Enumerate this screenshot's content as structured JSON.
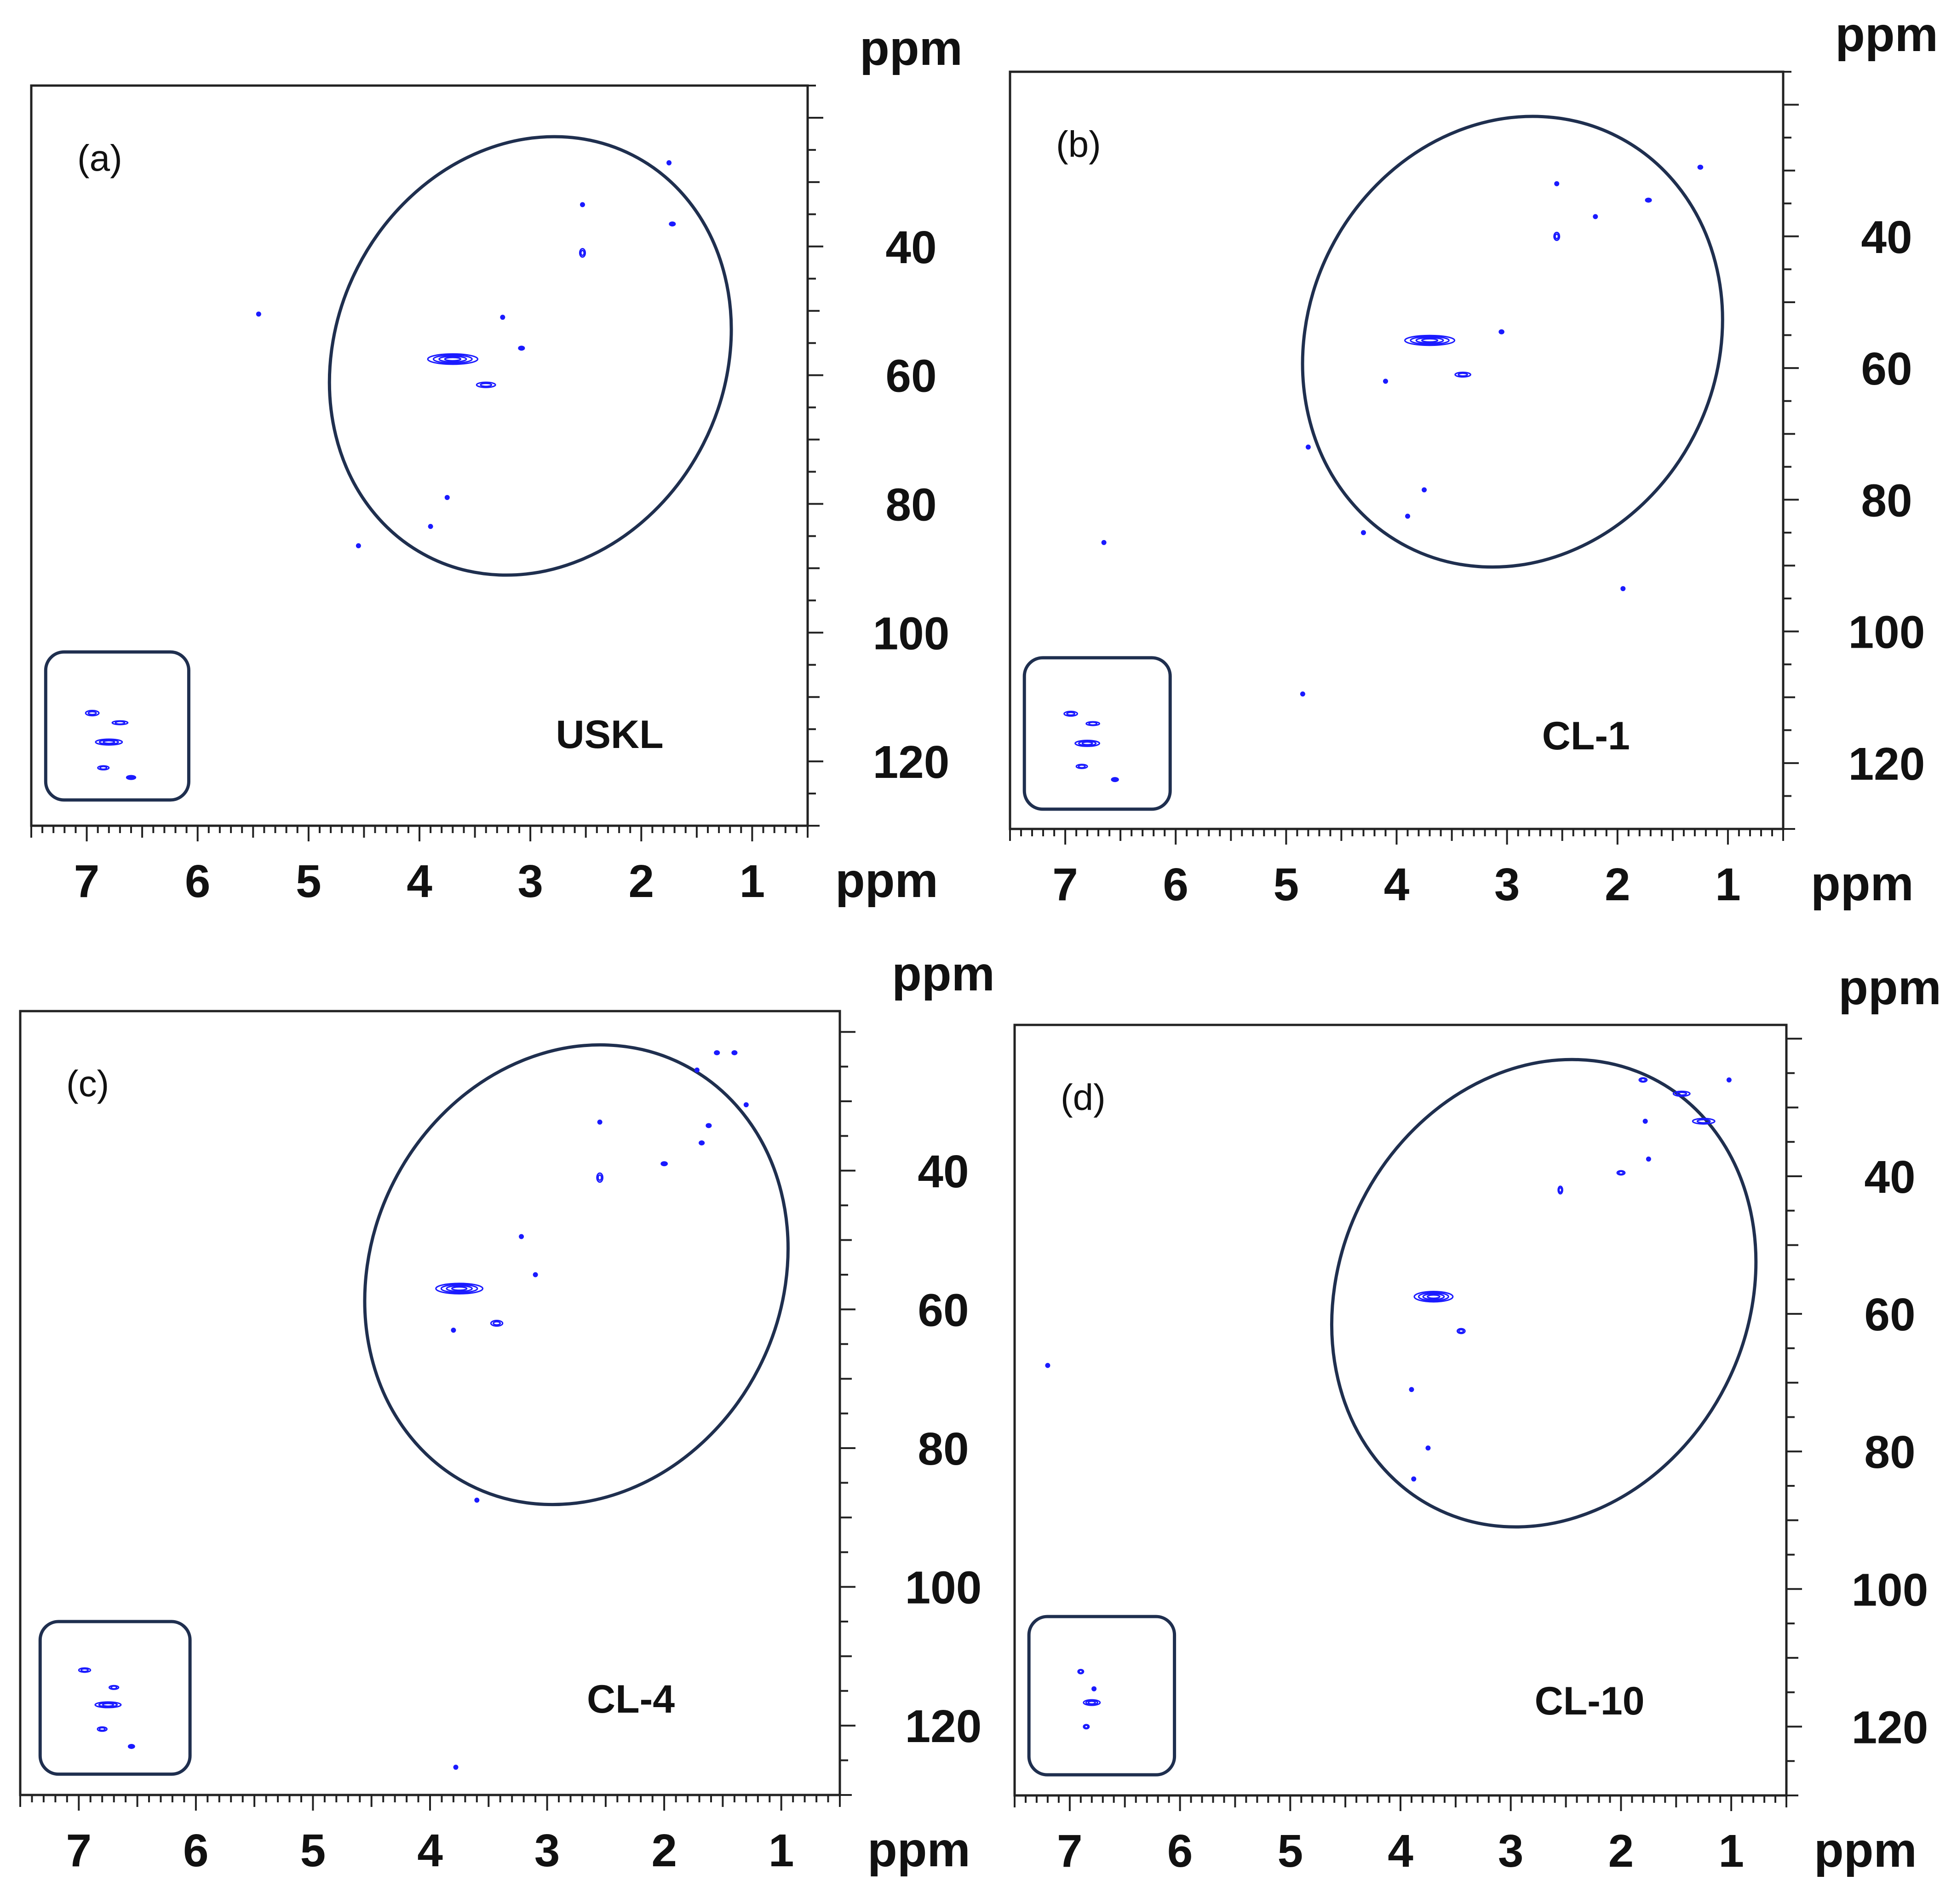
{
  "figure": {
    "axis_unit": "ppm",
    "region_ellipse_color": "#1f2f4f",
    "contour_color": "#1a1aff",
    "frame_color": "#222222"
  },
  "chart_data": [
    {
      "type": "heatmap",
      "panel_label": "(a)",
      "sample_label": "USKL",
      "xlabel": "ppm",
      "ylabel": "ppm",
      "xlim": [
        7.5,
        0.5
      ],
      "ylim": [
        130,
        15
      ],
      "x_ticks": [
        7,
        6,
        5,
        4,
        3,
        2,
        1
      ],
      "y_ticks": [
        40,
        60,
        80,
        100,
        120
      ],
      "region": {
        "cx": 3.0,
        "cy": 57,
        "rx": 1.75,
        "ry": 35,
        "rot": 27
      },
      "inset_region": {
        "x": [
          7.37,
          6.08
        ],
        "y": [
          103,
          126
        ]
      },
      "peaks": [
        {
          "x": 3.7,
          "y": 57.5,
          "w": 0.45,
          "h": 1.6,
          "rings": 4
        },
        {
          "x": 3.4,
          "y": 61.5,
          "w": 0.17,
          "h": 0.8,
          "rings": 2
        },
        {
          "x": 3.08,
          "y": 55.8,
          "w": 0.05,
          "h": 0.5,
          "rings": 1
        },
        {
          "x": 2.53,
          "y": 41,
          "w": 0.05,
          "h": 1.3,
          "rings": 2
        },
        {
          "x": 2.53,
          "y": 33.5,
          "w": 0.03,
          "h": 0.5,
          "rings": 1
        },
        {
          "x": 1.75,
          "y": 27,
          "w": 0.03,
          "h": 0.6,
          "rings": 1
        },
        {
          "x": 1.72,
          "y": 36.5,
          "w": 0.05,
          "h": 0.4,
          "rings": 1
        },
        {
          "x": 3.9,
          "y": 83.5,
          "w": 0.03,
          "h": 0.4,
          "rings": 1
        },
        {
          "x": 3.75,
          "y": 79,
          "w": 0.02,
          "h": 0.3,
          "rings": 1
        },
        {
          "x": 3.25,
          "y": 51,
          "w": 0.02,
          "h": 0.3,
          "rings": 1
        },
        {
          "x": 4.55,
          "y": 86.5,
          "w": 0.03,
          "h": 0.3,
          "rings": 1
        },
        {
          "x": 5.45,
          "y": 50.5,
          "w": 0.02,
          "h": 0.2,
          "rings": 1
        },
        {
          "x": 6.8,
          "y": 117,
          "w": 0.24,
          "h": 0.9,
          "rings": 3
        },
        {
          "x": 6.95,
          "y": 112.5,
          "w": 0.12,
          "h": 0.8,
          "rings": 2
        },
        {
          "x": 6.7,
          "y": 114,
          "w": 0.14,
          "h": 0.5,
          "rings": 2
        },
        {
          "x": 6.85,
          "y": 121,
          "w": 0.1,
          "h": 0.6,
          "rings": 2
        },
        {
          "x": 6.6,
          "y": 122.5,
          "w": 0.08,
          "h": 0.5,
          "rings": 1
        }
      ]
    },
    {
      "type": "heatmap",
      "panel_label": "(b)",
      "sample_label": "CL-1",
      "xlabel": "ppm",
      "ylabel": "ppm",
      "xlim": [
        7.5,
        0.5
      ],
      "ylim": [
        130,
        15
      ],
      "x_ticks": [
        7,
        6,
        5,
        4,
        3,
        2,
        1
      ],
      "y_ticks": [
        40,
        60,
        80,
        100,
        120
      ],
      "region": {
        "cx": 2.95,
        "cy": 56,
        "rx": 1.85,
        "ry": 35,
        "rot": 27
      },
      "inset_region": {
        "x": [
          7.37,
          6.05
        ],
        "y": [
          104,
          127
        ]
      },
      "peaks": [
        {
          "x": 3.7,
          "y": 55.8,
          "w": 0.45,
          "h": 1.5,
          "rings": 4
        },
        {
          "x": 3.4,
          "y": 61,
          "w": 0.14,
          "h": 0.7,
          "rings": 2
        },
        {
          "x": 3.05,
          "y": 54.5,
          "w": 0.04,
          "h": 0.4,
          "rings": 1
        },
        {
          "x": 2.55,
          "y": 40,
          "w": 0.05,
          "h": 1.2,
          "rings": 2
        },
        {
          "x": 2.55,
          "y": 32,
          "w": 0.03,
          "h": 0.4,
          "rings": 1
        },
        {
          "x": 1.25,
          "y": 29.5,
          "w": 0.04,
          "h": 0.5,
          "rings": 1
        },
        {
          "x": 1.72,
          "y": 34.5,
          "w": 0.05,
          "h": 0.4,
          "rings": 1
        },
        {
          "x": 2.2,
          "y": 37,
          "w": 0.02,
          "h": 0.2,
          "rings": 1
        },
        {
          "x": 4.1,
          "y": 62,
          "w": 0.03,
          "h": 0.3,
          "rings": 1
        },
        {
          "x": 3.9,
          "y": 82.5,
          "w": 0.03,
          "h": 0.4,
          "rings": 1
        },
        {
          "x": 3.75,
          "y": 78.5,
          "w": 0.03,
          "h": 0.3,
          "rings": 1
        },
        {
          "x": 4.8,
          "y": 72,
          "w": 0.03,
          "h": 0.3,
          "rings": 1
        },
        {
          "x": 4.3,
          "y": 85,
          "w": 0.02,
          "h": 0.3,
          "rings": 1
        },
        {
          "x": 6.65,
          "y": 86.5,
          "w": 0.02,
          "h": 0.2,
          "rings": 1
        },
        {
          "x": 4.85,
          "y": 109.5,
          "w": 0.02,
          "h": 0.3,
          "rings": 1
        },
        {
          "x": 1.95,
          "y": 93.5,
          "w": 0.02,
          "h": 0.2,
          "rings": 1
        },
        {
          "x": 6.8,
          "y": 117,
          "w": 0.22,
          "h": 0.9,
          "rings": 3
        },
        {
          "x": 6.95,
          "y": 112.5,
          "w": 0.12,
          "h": 0.7,
          "rings": 2
        },
        {
          "x": 6.75,
          "y": 114,
          "w": 0.12,
          "h": 0.5,
          "rings": 2
        },
        {
          "x": 6.85,
          "y": 120.5,
          "w": 0.1,
          "h": 0.6,
          "rings": 2
        },
        {
          "x": 6.55,
          "y": 122.5,
          "w": 0.06,
          "h": 0.4,
          "rings": 1
        }
      ]
    },
    {
      "type": "heatmap",
      "panel_label": "(c)",
      "sample_label": "CL-4",
      "xlabel": "ppm",
      "ylabel": "ppm",
      "xlim": [
        7.5,
        0.5
      ],
      "ylim": [
        130,
        17
      ],
      "x_ticks": [
        7,
        6,
        5,
        4,
        3,
        2,
        1
      ],
      "y_ticks": [
        40,
        60,
        80,
        100,
        120
      ],
      "region": {
        "cx": 2.75,
        "cy": 55,
        "rx": 1.75,
        "ry": 34,
        "rot": 27
      },
      "inset_region": {
        "x": [
          7.33,
          6.05
        ],
        "y": [
          105,
          127
        ]
      },
      "peaks": [
        {
          "x": 3.75,
          "y": 57,
          "w": 0.4,
          "h": 1.5,
          "rings": 4
        },
        {
          "x": 3.43,
          "y": 62,
          "w": 0.1,
          "h": 0.8,
          "rings": 2
        },
        {
          "x": 3.1,
          "y": 55,
          "w": 0.02,
          "h": 0.3,
          "rings": 1
        },
        {
          "x": 3.22,
          "y": 49.5,
          "w": 0.02,
          "h": 0.3,
          "rings": 1
        },
        {
          "x": 2.55,
          "y": 41,
          "w": 0.05,
          "h": 1.3,
          "rings": 2
        },
        {
          "x": 2.55,
          "y": 33,
          "w": 0.03,
          "h": 0.3,
          "rings": 1
        },
        {
          "x": 2.0,
          "y": 39,
          "w": 0.05,
          "h": 0.4,
          "rings": 1
        },
        {
          "x": 1.68,
          "y": 36,
          "w": 0.04,
          "h": 0.3,
          "rings": 1
        },
        {
          "x": 1.62,
          "y": 33.5,
          "w": 0.04,
          "h": 0.3,
          "rings": 1
        },
        {
          "x": 1.72,
          "y": 25.5,
          "w": 0.03,
          "h": 0.4,
          "rings": 1
        },
        {
          "x": 1.55,
          "y": 23,
          "w": 0.04,
          "h": 0.3,
          "rings": 1
        },
        {
          "x": 1.4,
          "y": 23,
          "w": 0.04,
          "h": 0.3,
          "rings": 1
        },
        {
          "x": 1.3,
          "y": 30.5,
          "w": 0.02,
          "h": 0.3,
          "rings": 1
        },
        {
          "x": 3.8,
          "y": 63,
          "w": 0.02,
          "h": 0.3,
          "rings": 1
        },
        {
          "x": 3.6,
          "y": 87.5,
          "w": 0.02,
          "h": 0.2,
          "rings": 1
        },
        {
          "x": 3.78,
          "y": 126,
          "w": 0.02,
          "h": 0.2,
          "rings": 1
        },
        {
          "x": 6.75,
          "y": 117,
          "w": 0.22,
          "h": 0.8,
          "rings": 3
        },
        {
          "x": 6.95,
          "y": 112,
          "w": 0.1,
          "h": 0.6,
          "rings": 2
        },
        {
          "x": 6.7,
          "y": 114.5,
          "w": 0.08,
          "h": 0.5,
          "rings": 2
        },
        {
          "x": 6.8,
          "y": 120.5,
          "w": 0.08,
          "h": 0.6,
          "rings": 2
        },
        {
          "x": 6.55,
          "y": 123,
          "w": 0.05,
          "h": 0.4,
          "rings": 1
        }
      ]
    },
    {
      "type": "heatmap",
      "panel_label": "(d)",
      "sample_label": "CL-10",
      "xlabel": "ppm",
      "ylabel": "ppm",
      "xlim": [
        7.5,
        0.5
      ],
      "ylim": [
        130,
        18
      ],
      "x_ticks": [
        7,
        6,
        5,
        4,
        3,
        2,
        1
      ],
      "y_ticks": [
        40,
        60,
        80,
        100,
        120
      ],
      "region": {
        "cx": 2.7,
        "cy": 57,
        "rx": 1.85,
        "ry": 35,
        "rot": 27
      },
      "inset_region": {
        "x": [
          7.37,
          6.05
        ],
        "y": [
          104,
          127
        ]
      },
      "peaks": [
        {
          "x": 3.7,
          "y": 57.5,
          "w": 0.35,
          "h": 1.5,
          "rings": 4
        },
        {
          "x": 3.45,
          "y": 62.5,
          "w": 0.07,
          "h": 0.7,
          "rings": 2
        },
        {
          "x": 2.55,
          "y": 42,
          "w": 0.04,
          "h": 1.1,
          "rings": 2
        },
        {
          "x": 2.0,
          "y": 39.5,
          "w": 0.07,
          "h": 0.6,
          "rings": 2
        },
        {
          "x": 1.8,
          "y": 26,
          "w": 0.07,
          "h": 0.6,
          "rings": 2
        },
        {
          "x": 1.45,
          "y": 28,
          "w": 0.15,
          "h": 0.7,
          "rings": 2
        },
        {
          "x": 1.25,
          "y": 32,
          "w": 0.2,
          "h": 0.8,
          "rings": 2
        },
        {
          "x": 1.78,
          "y": 32,
          "w": 0.03,
          "h": 0.3,
          "rings": 1
        },
        {
          "x": 1.02,
          "y": 26,
          "w": 0.03,
          "h": 0.3,
          "rings": 1
        },
        {
          "x": 1.75,
          "y": 37.5,
          "w": 0.02,
          "h": 0.3,
          "rings": 1
        },
        {
          "x": 3.9,
          "y": 71,
          "w": 0.02,
          "h": 0.3,
          "rings": 1
        },
        {
          "x": 3.88,
          "y": 84,
          "w": 0.02,
          "h": 0.4,
          "rings": 1
        },
        {
          "x": 3.75,
          "y": 79.5,
          "w": 0.02,
          "h": 0.2,
          "rings": 1
        },
        {
          "x": 7.2,
          "y": 67.5,
          "w": 0.02,
          "h": 0.2,
          "rings": 1
        },
        {
          "x": 6.8,
          "y": 116.5,
          "w": 0.15,
          "h": 0.8,
          "rings": 3
        },
        {
          "x": 6.9,
          "y": 112,
          "w": 0.05,
          "h": 0.6,
          "rings": 2
        },
        {
          "x": 6.78,
          "y": 114.5,
          "w": 0.03,
          "h": 0.3,
          "rings": 1
        },
        {
          "x": 6.85,
          "y": 120,
          "w": 0.05,
          "h": 0.6,
          "rings": 2
        }
      ]
    }
  ]
}
